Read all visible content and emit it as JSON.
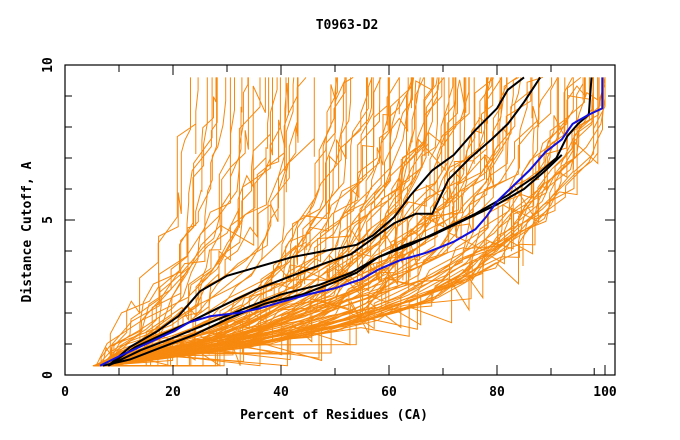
{
  "chart_data": {
    "type": "line",
    "title": "T0963-D2",
    "xlabel": "Percent of Residues (CA)",
    "ylabel": "Distance Cutoff, A",
    "xlim": [
      0,
      100
    ],
    "ylim": [
      0,
      10
    ],
    "x_ticks": [
      0,
      20,
      40,
      60,
      80,
      100
    ],
    "x_minor_ticks": [
      10,
      30,
      50,
      70,
      90,
      98
    ],
    "y_ticks": [
      0,
      5,
      10
    ],
    "y_minor_ticks": [
      1,
      2,
      3,
      4,
      6,
      7,
      8,
      9
    ],
    "grid": false,
    "legend": "none",
    "y_cap": 9.6,
    "colors": {
      "models": "#f7890f",
      "highlighted": "#000000",
      "reference": "#1010e0"
    },
    "series": [
      {
        "name": "reference-blue",
        "role": "reference",
        "points": [
          [
            6.5,
            0.3
          ],
          [
            10,
            0.6
          ],
          [
            15,
            1.0
          ],
          [
            20,
            1.4
          ],
          [
            23,
            1.7
          ],
          [
            27,
            1.9
          ],
          [
            32,
            2.0
          ],
          [
            36,
            2.15
          ],
          [
            40,
            2.35
          ],
          [
            45,
            2.6
          ],
          [
            50,
            2.8
          ],
          [
            55,
            3.1
          ],
          [
            58,
            3.4
          ],
          [
            62,
            3.7
          ],
          [
            67,
            3.95
          ],
          [
            72,
            4.3
          ],
          [
            76,
            4.7
          ],
          [
            78,
            5.1
          ],
          [
            80,
            5.6
          ],
          [
            83,
            6.1
          ],
          [
            86,
            6.6
          ],
          [
            89,
            7.2
          ],
          [
            92,
            7.6
          ],
          [
            94,
            8.1
          ],
          [
            97,
            8.4
          ],
          [
            99.5,
            8.6
          ],
          [
            99.5,
            9.6
          ]
        ]
      },
      {
        "name": "highlight-1",
        "role": "highlighted",
        "points": [
          [
            8,
            0.3
          ],
          [
            12,
            0.9
          ],
          [
            17,
            1.4
          ],
          [
            21,
            1.9
          ],
          [
            25,
            2.7
          ],
          [
            30,
            3.2
          ],
          [
            36,
            3.5
          ],
          [
            42,
            3.8
          ],
          [
            48,
            4.0
          ],
          [
            54,
            4.2
          ],
          [
            57,
            4.5
          ],
          [
            61,
            5.1
          ],
          [
            64,
            5.8
          ],
          [
            68,
            6.6
          ],
          [
            72,
            7.1
          ],
          [
            76,
            7.9
          ],
          [
            80,
            8.6
          ],
          [
            82,
            9.2
          ],
          [
            85,
            9.6
          ]
        ]
      },
      {
        "name": "highlight-2",
        "role": "highlighted",
        "points": [
          [
            8,
            0.3
          ],
          [
            13,
            0.9
          ],
          [
            18,
            1.3
          ],
          [
            23,
            1.7
          ],
          [
            30,
            2.3
          ],
          [
            36,
            2.8
          ],
          [
            42,
            3.2
          ],
          [
            48,
            3.6
          ],
          [
            53,
            3.9
          ],
          [
            57,
            4.4
          ],
          [
            61,
            4.9
          ],
          [
            65,
            5.2
          ],
          [
            68,
            5.2
          ],
          [
            71,
            6.3
          ],
          [
            75,
            7.0
          ],
          [
            79,
            7.6
          ],
          [
            82,
            8.1
          ],
          [
            85,
            8.8
          ],
          [
            88,
            9.6
          ]
        ]
      },
      {
        "name": "highlight-3",
        "role": "highlighted",
        "points": [
          [
            8,
            0.3
          ],
          [
            14,
            0.8
          ],
          [
            20,
            1.2
          ],
          [
            27,
            1.7
          ],
          [
            34,
            2.2
          ],
          [
            40,
            2.6
          ],
          [
            47,
            2.9
          ],
          [
            53,
            3.3
          ],
          [
            58,
            3.8
          ],
          [
            64,
            4.2
          ],
          [
            70,
            4.7
          ],
          [
            76,
            5.2
          ],
          [
            82,
            5.8
          ],
          [
            87,
            6.4
          ],
          [
            91,
            7.0
          ],
          [
            93,
            7.7
          ],
          [
            95,
            8.1
          ],
          [
            97,
            8.4
          ],
          [
            97.5,
            9.6
          ]
        ]
      },
      {
        "name": "highlight-4",
        "role": "highlighted",
        "points": [
          [
            7,
            0.3
          ],
          [
            12,
            0.5
          ],
          [
            18,
            0.9
          ],
          [
            24,
            1.3
          ],
          [
            30,
            1.8
          ],
          [
            37,
            2.3
          ],
          [
            44,
            2.6
          ],
          [
            50,
            3.0
          ],
          [
            54,
            3.3
          ],
          [
            58,
            3.8
          ],
          [
            63,
            4.2
          ],
          [
            68,
            4.5
          ],
          [
            74,
            5.0
          ],
          [
            80,
            5.5
          ],
          [
            85,
            6.0
          ],
          [
            89,
            6.6
          ],
          [
            92,
            7.1
          ]
        ]
      }
    ],
    "model_bundle": {
      "description": "Large ensemble of orange model curves spanning the region between the steep upper envelope and shallow lower envelope",
      "count_estimate": 120,
      "upper_envelope": [
        [
          5,
          0.3
        ],
        [
          10,
          1.5
        ],
        [
          14,
          2.8
        ],
        [
          17,
          4.0
        ],
        [
          19,
          5.5
        ],
        [
          20,
          7.0
        ],
        [
          21,
          9.6
        ]
      ],
      "lower_envelope": [
        [
          6,
          0.3
        ],
        [
          20,
          0.6
        ],
        [
          40,
          1.1
        ],
        [
          55,
          1.6
        ],
        [
          70,
          2.6
        ],
        [
          80,
          3.6
        ],
        [
          88,
          4.8
        ],
        [
          95,
          6.5
        ],
        [
          100,
          8.5
        ],
        [
          100,
          9.6
        ]
      ]
    }
  }
}
